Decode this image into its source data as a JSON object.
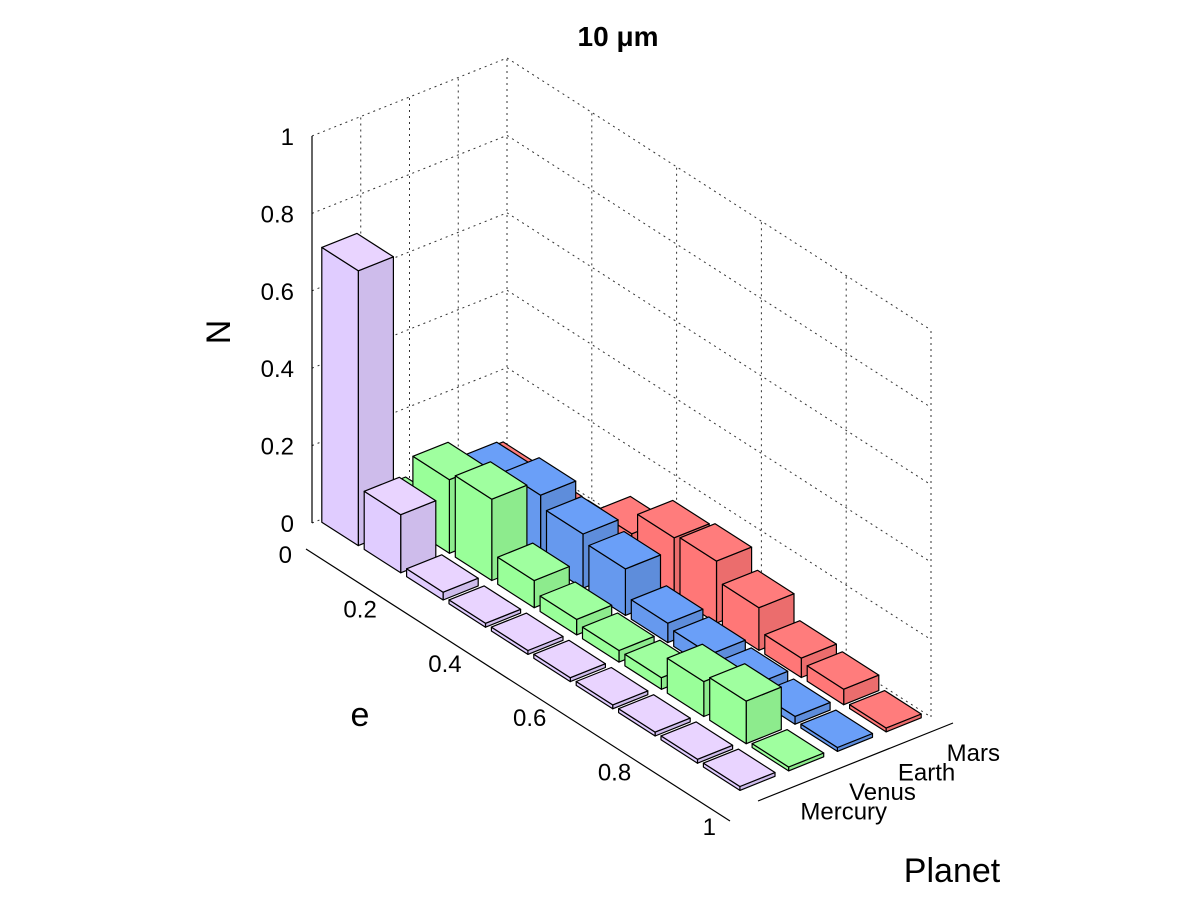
{
  "chart_data": {
    "type": "bar3d",
    "title": "10 μm",
    "xlabel": "e",
    "ylabel": "Planet",
    "zlabel": "N",
    "zlim": [
      0,
      1
    ],
    "z_ticks": [
      "0",
      "0.2",
      "0.4",
      "0.6",
      "0.8",
      "1"
    ],
    "e_ticks": [
      "0",
      "0.2",
      "0.4",
      "0.6",
      "0.8",
      "1"
    ],
    "e_tick_values": [
      0,
      0.2,
      0.4,
      0.6,
      0.8,
      1
    ],
    "e_bins": [
      0.05,
      0.15,
      0.25,
      0.35,
      0.45,
      0.55,
      0.65,
      0.75,
      0.85,
      0.95
    ],
    "grid": true,
    "series": [
      {
        "name": "Mercury",
        "color": "#E0CCFF",
        "values": [
          0.71,
          0.15,
          0.02,
          0.01,
          0.01,
          0.01,
          0.01,
          0.01,
          0.01,
          0.01
        ]
      },
      {
        "name": "Venus",
        "color": "#99FF99",
        "values": [
          0.03,
          0.19,
          0.21,
          0.07,
          0.04,
          0.03,
          0.03,
          0.09,
          0.11,
          0.01
        ]
      },
      {
        "name": "Earth",
        "color": "#6699EE",
        "values": [
          0.03,
          0.14,
          0.17,
          0.14,
          0.12,
          0.05,
          0.04,
          0.03,
          0.02,
          0.01
        ]
      },
      {
        "name": "Mars",
        "color": "#FF7777",
        "values": [
          0.02,
          0.01,
          0.01,
          0.09,
          0.15,
          0.16,
          0.11,
          0.05,
          0.04,
          0.01
        ]
      }
    ]
  }
}
